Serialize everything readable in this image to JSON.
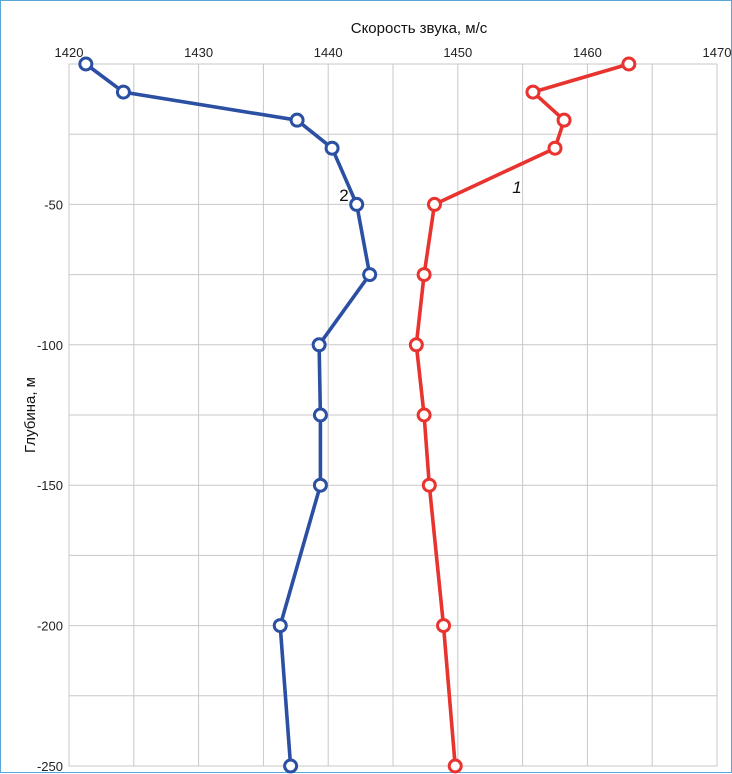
{
  "chart_data": {
    "type": "line",
    "title": "",
    "xlabel": "Скорость звука, м/с",
    "ylabel": "Глубина, м",
    "xlim": [
      1420,
      1470
    ],
    "ylim": [
      -250,
      0
    ],
    "x_ticks": [
      "1420",
      "1430",
      "1440",
      "1450",
      "1460",
      "1470"
    ],
    "x_tick_values": [
      1420,
      1430,
      1440,
      1450,
      1460,
      1470
    ],
    "y_ticks": [
      "-50",
      "-100",
      "-150",
      "-200",
      "-250"
    ],
    "y_tick_values": [
      -50,
      -100,
      -150,
      -200,
      -250
    ],
    "grid": true,
    "x_axis_position": "top",
    "series": [
      {
        "label": "1",
        "color": "#e8332e",
        "points": [
          {
            "x": 1463.2,
            "y": 0
          },
          {
            "x": 1455.8,
            "y": -10
          },
          {
            "x": 1458.2,
            "y": -20
          },
          {
            "x": 1457.5,
            "y": -30
          },
          {
            "x": 1448.2,
            "y": -50
          },
          {
            "x": 1447.4,
            "y": -75
          },
          {
            "x": 1446.8,
            "y": -100
          },
          {
            "x": 1447.4,
            "y": -125
          },
          {
            "x": 1447.8,
            "y": -150
          },
          {
            "x": 1448.9,
            "y": -200
          },
          {
            "x": 1449.8,
            "y": -250
          }
        ]
      },
      {
        "label": "2",
        "color": "#2b4fa3",
        "points": [
          {
            "x": 1421.3,
            "y": 0
          },
          {
            "x": 1424.2,
            "y": -10
          },
          {
            "x": 1437.6,
            "y": -20
          },
          {
            "x": 1440.3,
            "y": -30
          },
          {
            "x": 1442.2,
            "y": -50
          },
          {
            "x": 1443.2,
            "y": -75
          },
          {
            "x": 1439.3,
            "y": -100
          },
          {
            "x": 1439.4,
            "y": -125
          },
          {
            "x": 1439.4,
            "y": -150
          },
          {
            "x": 1436.3,
            "y": -200
          },
          {
            "x": 1437.1,
            "y": -250
          }
        ]
      }
    ]
  }
}
